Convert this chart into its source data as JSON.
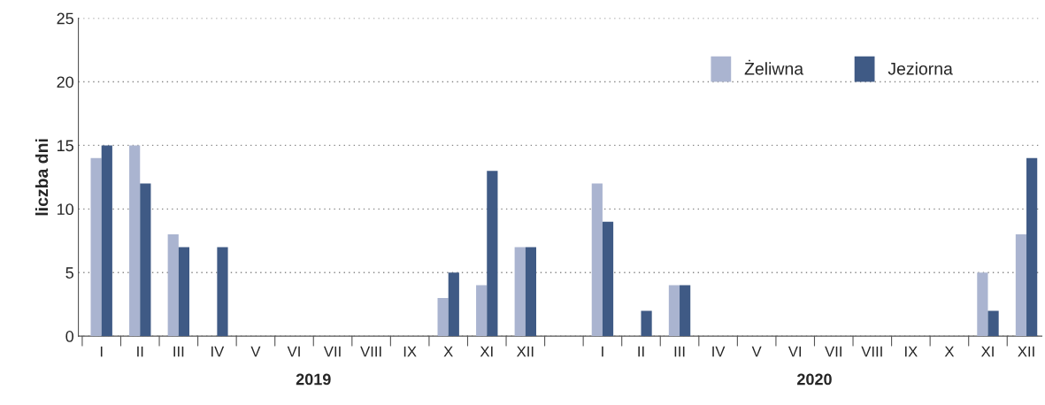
{
  "chart_data": {
    "type": "bar",
    "ylabel": "liczba dni",
    "categories": [
      "I",
      "II",
      "III",
      "IV",
      "V",
      "VI",
      "VII",
      "VIII",
      "IX",
      "X",
      "XI",
      "XII",
      null,
      "I",
      "II",
      "III",
      "IV",
      "V",
      "VI",
      "VII",
      "VIII",
      "IX",
      "X",
      "XI",
      "XII"
    ],
    "series": [
      {
        "name": "Żeliwna",
        "color": "#aab4d0",
        "values": [
          14,
          15,
          8,
          0,
          0,
          0,
          0,
          0,
          0,
          3,
          4,
          7,
          null,
          12,
          0,
          4,
          0,
          0,
          0,
          0,
          0,
          0,
          0,
          5,
          8
        ]
      },
      {
        "name": "Jeziorna",
        "color": "#3f5a85",
        "values": [
          15,
          12,
          7,
          7,
          0,
          0,
          0,
          0,
          0,
          5,
          13,
          7,
          null,
          9,
          2,
          4,
          0,
          0,
          0,
          0,
          0,
          0,
          0,
          2,
          14
        ]
      }
    ],
    "ylim": [
      0,
      25
    ],
    "yticks": [
      0,
      5,
      10,
      15,
      20,
      25
    ],
    "grid": "y",
    "legend": "top right",
    "annotations": [
      "2019",
      "2020"
    ]
  }
}
